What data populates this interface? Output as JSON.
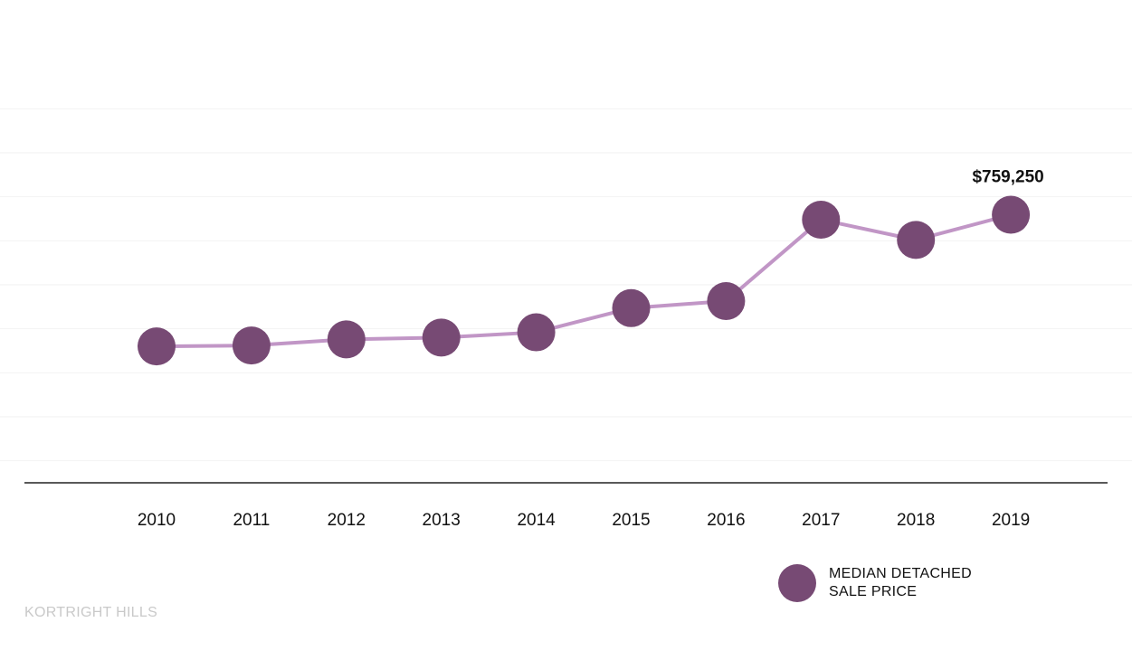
{
  "chart_data": {
    "type": "line",
    "categories": [
      "2010",
      "2011",
      "2012",
      "2013",
      "2014",
      "2015",
      "2016",
      "2017",
      "2018",
      "2019"
    ],
    "series": [
      {
        "name": "MEDIAN DETACHED SALE PRICE",
        "values": [
          460000,
          462000,
          476000,
          480000,
          492000,
          547000,
          563000,
          748000,
          702000,
          759250
        ]
      }
    ],
    "ylim": [
      150000,
      1050000
    ],
    "grid": true,
    "annotations": [
      {
        "category": "2019",
        "text": "$759,250"
      }
    ],
    "legend": {
      "position": "bottom-right",
      "lines": [
        "MEDIAN DETACHED",
        "SALE PRICE"
      ]
    }
  },
  "colors": {
    "marker": "#774a74",
    "line": "#c196c6",
    "gridline": "#f2f2f2",
    "baseline": "#222222",
    "brand": "#c9c9c9"
  },
  "brand": {
    "text": "KORTRIGHT HILLS"
  }
}
